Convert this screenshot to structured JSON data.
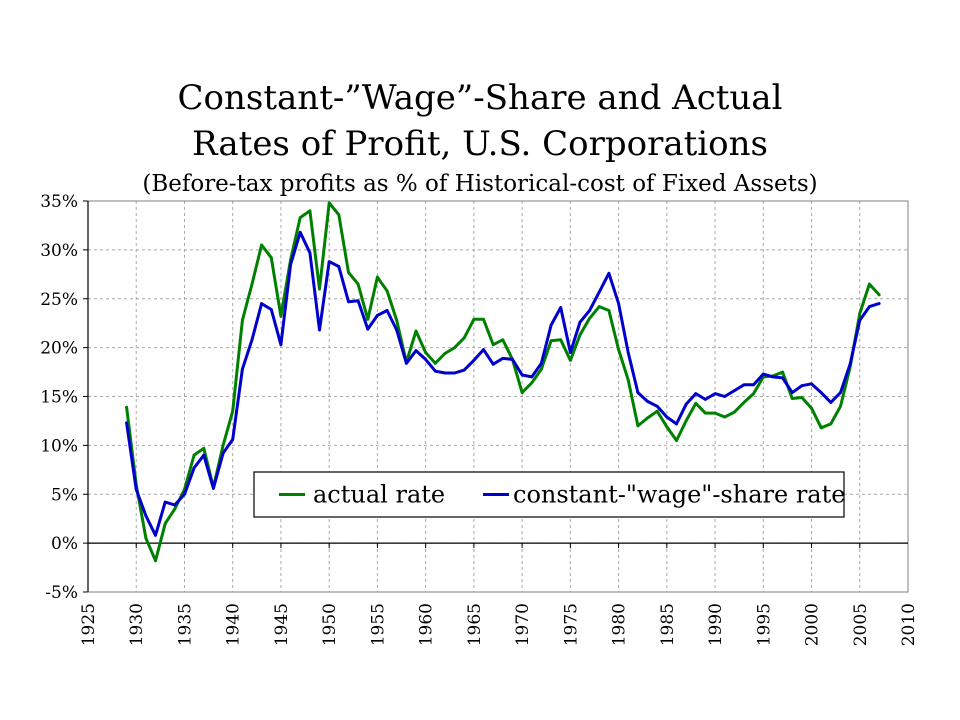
{
  "chart_data": {
    "type": "line",
    "title": "Constant-”Wage”-Share and Actual",
    "title_line2": "Rates of Profit, U.S. Corporations",
    "subtitle": "(Before-tax profits as % of Historical-cost of Fixed Assets)",
    "xlabel": "",
    "ylabel": "",
    "xlim": [
      1925,
      2010
    ],
    "ylim": [
      -5,
      35
    ],
    "x_ticks": [
      "1925",
      "1930",
      "1935",
      "1940",
      "1945",
      "1950",
      "1955",
      "1960",
      "1965",
      "1970",
      "1975",
      "1980",
      "1985",
      "1990",
      "1995",
      "2000",
      "2005",
      "2010"
    ],
    "y_ticks": [
      "-5%",
      "0%",
      "5%",
      "10%",
      "15%",
      "20%",
      "25%",
      "30%",
      "35%"
    ],
    "grid": true,
    "legend_position": "center-bottom",
    "series": [
      {
        "name": "actual rate",
        "color": "#008000",
        "points": [
          [
            1929,
            13.9
          ],
          [
            1930,
            6.0
          ],
          [
            1931,
            0.5
          ],
          [
            1932,
            -1.8
          ],
          [
            1933,
            2.0
          ],
          [
            1934,
            3.5
          ],
          [
            1935,
            5.5
          ],
          [
            1936,
            9.0
          ],
          [
            1937,
            9.7
          ],
          [
            1938,
            5.7
          ],
          [
            1939,
            10.0
          ],
          [
            1940,
            13.5
          ],
          [
            1941,
            22.8
          ],
          [
            1942,
            26.5
          ],
          [
            1943,
            30.5
          ],
          [
            1944,
            29.2
          ],
          [
            1945,
            23.2
          ],
          [
            1946,
            29.0
          ],
          [
            1947,
            33.3
          ],
          [
            1948,
            34.0
          ],
          [
            1949,
            26.0
          ],
          [
            1950,
            34.8
          ],
          [
            1951,
            33.6
          ],
          [
            1952,
            27.7
          ],
          [
            1953,
            26.5
          ],
          [
            1954,
            22.9
          ],
          [
            1955,
            27.2
          ],
          [
            1956,
            25.8
          ],
          [
            1957,
            22.8
          ],
          [
            1958,
            18.5
          ],
          [
            1959,
            21.7
          ],
          [
            1960,
            19.5
          ],
          [
            1961,
            18.4
          ],
          [
            1962,
            19.4
          ],
          [
            1963,
            20.0
          ],
          [
            1964,
            21.0
          ],
          [
            1965,
            22.9
          ],
          [
            1966,
            22.9
          ],
          [
            1967,
            20.3
          ],
          [
            1968,
            20.8
          ],
          [
            1969,
            18.8
          ],
          [
            1970,
            15.4
          ],
          [
            1971,
            16.4
          ],
          [
            1972,
            17.8
          ],
          [
            1973,
            20.7
          ],
          [
            1974,
            20.8
          ],
          [
            1975,
            18.7
          ],
          [
            1976,
            21.3
          ],
          [
            1977,
            23.0
          ],
          [
            1978,
            24.2
          ],
          [
            1979,
            23.8
          ],
          [
            1980,
            19.8
          ],
          [
            1981,
            16.7
          ],
          [
            1982,
            12.0
          ],
          [
            1983,
            12.8
          ],
          [
            1984,
            13.5
          ],
          [
            1985,
            11.9
          ],
          [
            1986,
            10.5
          ],
          [
            1987,
            12.5
          ],
          [
            1988,
            14.3
          ],
          [
            1989,
            13.3
          ],
          [
            1990,
            13.3
          ],
          [
            1991,
            12.9
          ],
          [
            1992,
            13.4
          ],
          [
            1993,
            14.4
          ],
          [
            1994,
            15.3
          ],
          [
            1995,
            17.0
          ],
          [
            1996,
            17.1
          ],
          [
            1997,
            17.5
          ],
          [
            1998,
            14.8
          ],
          [
            1999,
            14.9
          ],
          [
            2000,
            13.8
          ],
          [
            2001,
            11.8
          ],
          [
            2002,
            12.2
          ],
          [
            2003,
            14.0
          ],
          [
            2004,
            18.0
          ],
          [
            2005,
            23.5
          ],
          [
            2006,
            26.5
          ],
          [
            2007,
            25.4
          ]
        ]
      },
      {
        "name": "constant-\"wage\"-share rate",
        "color": "#0000cc",
        "points": [
          [
            1929,
            12.3
          ],
          [
            1930,
            5.5
          ],
          [
            1931,
            2.8
          ],
          [
            1932,
            0.8
          ],
          [
            1933,
            4.2
          ],
          [
            1934,
            3.9
          ],
          [
            1935,
            5.0
          ],
          [
            1936,
            7.7
          ],
          [
            1937,
            9.0
          ],
          [
            1938,
            5.6
          ],
          [
            1939,
            9.2
          ],
          [
            1940,
            10.6
          ],
          [
            1941,
            17.8
          ],
          [
            1942,
            20.8
          ],
          [
            1943,
            24.5
          ],
          [
            1944,
            23.9
          ],
          [
            1945,
            20.3
          ],
          [
            1946,
            28.5
          ],
          [
            1947,
            31.8
          ],
          [
            1948,
            29.7
          ],
          [
            1949,
            21.8
          ],
          [
            1950,
            28.8
          ],
          [
            1951,
            28.3
          ],
          [
            1952,
            24.7
          ],
          [
            1953,
            24.8
          ],
          [
            1954,
            21.9
          ],
          [
            1955,
            23.3
          ],
          [
            1956,
            23.8
          ],
          [
            1957,
            21.8
          ],
          [
            1958,
            18.4
          ],
          [
            1959,
            19.7
          ],
          [
            1960,
            18.8
          ],
          [
            1961,
            17.6
          ],
          [
            1962,
            17.4
          ],
          [
            1963,
            17.4
          ],
          [
            1964,
            17.7
          ],
          [
            1965,
            18.7
          ],
          [
            1966,
            19.8
          ],
          [
            1967,
            18.3
          ],
          [
            1968,
            18.9
          ],
          [
            1969,
            18.8
          ],
          [
            1970,
            17.2
          ],
          [
            1971,
            17.0
          ],
          [
            1972,
            18.4
          ],
          [
            1973,
            22.3
          ],
          [
            1974,
            24.1
          ],
          [
            1975,
            19.5
          ],
          [
            1976,
            22.6
          ],
          [
            1977,
            23.8
          ],
          [
            1978,
            25.7
          ],
          [
            1979,
            27.6
          ],
          [
            1980,
            24.5
          ],
          [
            1981,
            19.5
          ],
          [
            1982,
            15.4
          ],
          [
            1983,
            14.5
          ],
          [
            1984,
            14.0
          ],
          [
            1985,
            12.9
          ],
          [
            1986,
            12.2
          ],
          [
            1987,
            14.2
          ],
          [
            1988,
            15.3
          ],
          [
            1989,
            14.7
          ],
          [
            1990,
            15.3
          ],
          [
            1991,
            15.0
          ],
          [
            1992,
            15.6
          ],
          [
            1993,
            16.2
          ],
          [
            1994,
            16.2
          ],
          [
            1995,
            17.3
          ],
          [
            1996,
            17.0
          ],
          [
            1997,
            16.9
          ],
          [
            1998,
            15.4
          ],
          [
            1999,
            16.1
          ],
          [
            2000,
            16.3
          ],
          [
            2001,
            15.4
          ],
          [
            2002,
            14.4
          ],
          [
            2003,
            15.4
          ],
          [
            2004,
            18.3
          ],
          [
            2005,
            22.8
          ],
          [
            2006,
            24.2
          ],
          [
            2007,
            24.5
          ]
        ]
      }
    ]
  }
}
